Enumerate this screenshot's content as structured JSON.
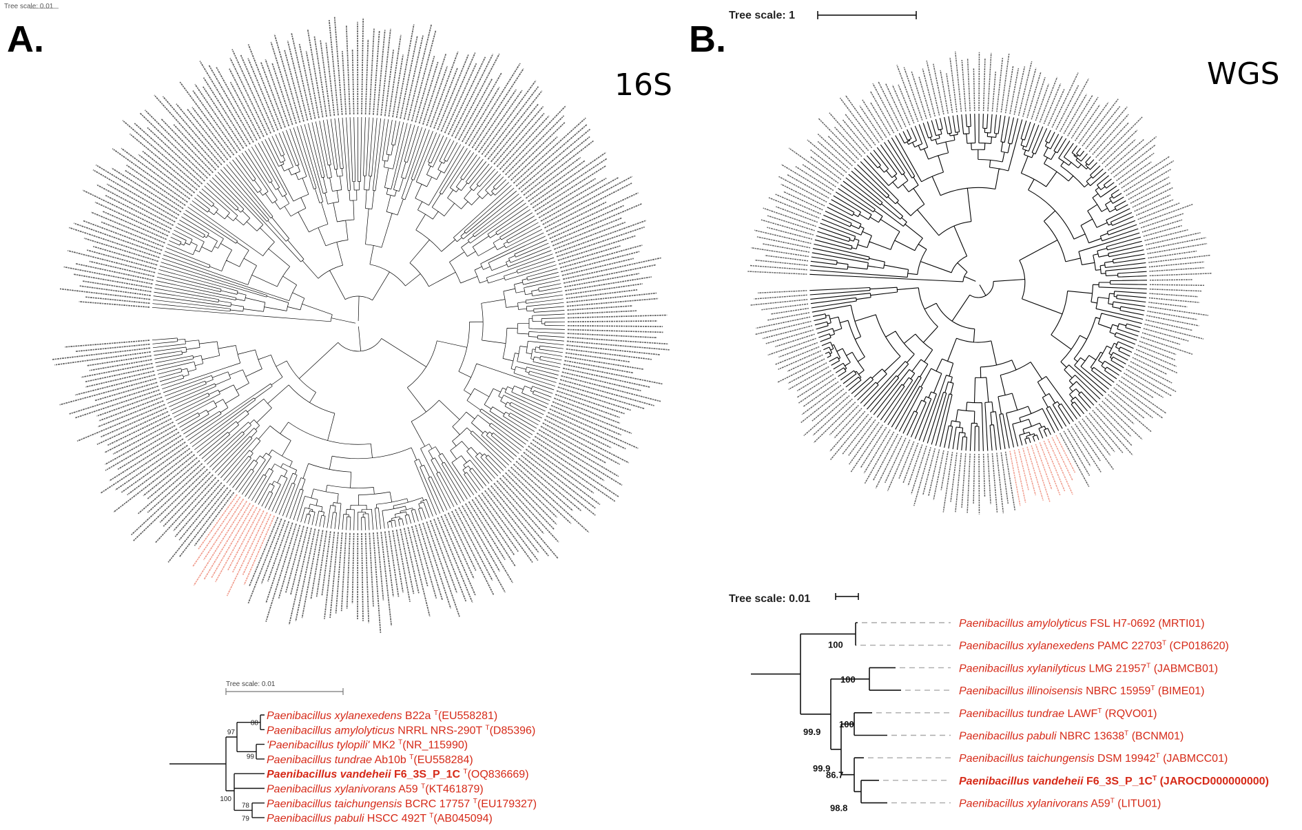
{
  "panel_a": {
    "letter": "A.",
    "title": "16S",
    "tree_scale_label": "Tree scale: 0.01",
    "corner_scale_label": "Tree scale: 0.01",
    "subtree": {
      "leaves": [
        {
          "genus": "Paenibacillus",
          "species": "xylanexedens",
          "strain": "B22a",
          "type": "T",
          "accession": "(EU558281)",
          "bold": false
        },
        {
          "genus": "Paenibacillus",
          "species": "amylolyticus",
          "strain": "NRRL NRS-290T",
          "type": "T",
          "accession": "(D85396)",
          "bold": false
        },
        {
          "genus": "'Paenibacillus",
          "species": "tylopili'",
          "strain": "MK2",
          "type": "T",
          "accession": "(NR_115990)",
          "bold": false
        },
        {
          "genus": "Paenibacillus",
          "species": "tundrae",
          "strain": "Ab10b",
          "type": "T",
          "accession": "(EU558284)",
          "bold": false
        },
        {
          "genus": "Paenibacillus",
          "species": "vandeheii",
          "strain": "F6_3S_P_1C",
          "type": "T",
          "accession": "(OQ836669)",
          "bold": true
        },
        {
          "genus": "Paenibacillus",
          "species": "xylanivorans",
          "strain": "A59",
          "type": "T",
          "accession": "(KT461879)",
          "bold": false
        },
        {
          "genus": "Paenibacillus",
          "species": "taichungensis",
          "strain": "BCRC 17757",
          "type": "T",
          "accession": "(EU179327)",
          "bold": false
        },
        {
          "genus": "Paenibacillus",
          "species": "pabuli",
          "strain": "HSCC 492T",
          "type": "T",
          "accession": "(AB045094)",
          "bold": false
        }
      ],
      "bootstraps": [
        "88",
        "97",
        "99",
        "100",
        "78",
        "79"
      ]
    }
  },
  "panel_b": {
    "letter": "B.",
    "title": "WGS",
    "tree_scale_label": "Tree scale: 1",
    "subtree_scale_label": "Tree scale: 0.01",
    "subtree": {
      "leaves": [
        {
          "genus": "Paenibacillus",
          "species": "amylolyticus",
          "strain": "FSL H7-0692",
          "type": "",
          "accession": "(MRTI01)",
          "bold": false
        },
        {
          "genus": "Paenibacillus",
          "species": "xylanexedens",
          "strain": "PAMC 22703",
          "type": "T",
          "accession": "(CP018620)",
          "bold": false
        },
        {
          "genus": "Paenibacillus",
          "species": "xylanilyticus",
          "strain": "LMG 21957",
          "type": "T",
          "accession": "(JABMCB01)",
          "bold": false
        },
        {
          "genus": "Paenibacillus",
          "species": "illinoisensis",
          "strain": "NBRC 15959",
          "type": "T",
          "accession": "(BIME01)",
          "bold": false
        },
        {
          "genus": "Paenibacillus",
          "species": "tundrae",
          "strain": "LAWF",
          "type": "T",
          "accession": "(RQVO01)",
          "bold": false
        },
        {
          "genus": "Paenibacillus",
          "species": "pabuli",
          "strain": "NBRC 13638",
          "type": "T",
          "accession": "(BCNM01)",
          "bold": false
        },
        {
          "genus": "Paenibacillus",
          "species": "taichungensis",
          "strain": "DSM 19942",
          "type": "T",
          "accession": "(JABMCC01)",
          "bold": false
        },
        {
          "genus": "Paenibacillus",
          "species": "vandeheii",
          "strain": "F6_3S_P_1C",
          "type": "T",
          "accession": "(JAROCD000000000)",
          "bold": true
        },
        {
          "genus": "Paenibacillus",
          "species": "xylanivorans",
          "strain": "A59",
          "type": "T",
          "accession": "(LITU01)",
          "bold": false
        }
      ],
      "bootstraps": [
        "100",
        "100",
        "100",
        "99.9",
        "99.9",
        "86.7",
        "98.8"
      ]
    }
  },
  "colors": {
    "highlight": "#d62a18",
    "highlight_light": "#ee8a78",
    "branch": "#000000",
    "circ_label": "#444444",
    "dash": "#aaaaaa"
  }
}
